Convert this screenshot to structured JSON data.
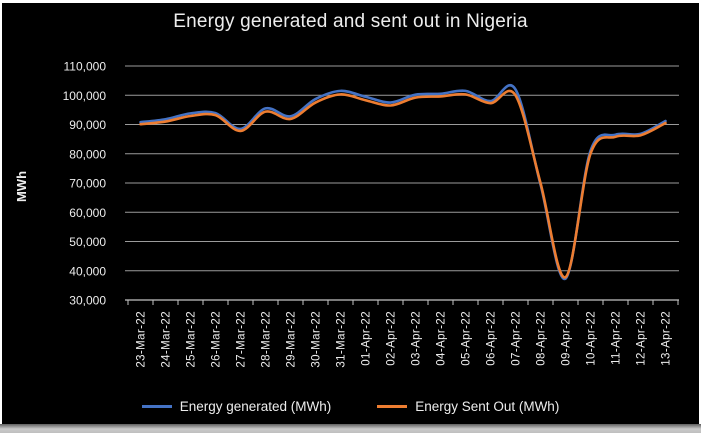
{
  "chart_data": {
    "type": "line",
    "title": "Energy generated and sent out in Nigeria",
    "xlabel": "",
    "ylabel": "MWh",
    "categories": [
      "23-Mar-22",
      "24-Mar-22",
      "25-Mar-22",
      "26-Mar-22",
      "27-Mar-22",
      "28-Mar-22",
      "29-Mar-22",
      "30-Mar-22",
      "31-Mar-22",
      "01-Apr-22",
      "02-Apr-22",
      "03-Apr-22",
      "04-Apr-22",
      "05-Apr-22",
      "06-Apr-22",
      "07-Apr-22",
      "08-Apr-22",
      "09-Apr-22",
      "10-Apr-22",
      "11-Apr-22",
      "12-Apr-22",
      "13-Apr-22"
    ],
    "series": [
      {
        "name": "Energy generated (MWh)",
        "color": "#4472C4",
        "values": [
          90800,
          91800,
          93800,
          93900,
          88500,
          95500,
          92800,
          98700,
          101500,
          99500,
          97500,
          100200,
          100500,
          101500,
          98000,
          102000,
          69500,
          37300,
          81000,
          86500,
          86800,
          91200
        ]
      },
      {
        "name": "Energy Sent Out (MWh)",
        "color": "#ED7D31",
        "values": [
          90100,
          91000,
          92900,
          93200,
          87800,
          94400,
          91900,
          97500,
          100300,
          98300,
          96500,
          99200,
          99600,
          100300,
          97300,
          100000,
          70000,
          37800,
          80000,
          85800,
          86300,
          90500
        ]
      }
    ],
    "ylim": [
      30000,
      110000
    ],
    "ytick_step": 10000,
    "grid": true,
    "smooth_lines": true,
    "legend_position": "bottom"
  },
  "colors": {
    "chart_background": "#000000",
    "text": "#ededed",
    "gridline": "#9b9b9b",
    "axis_line": "#c3c3c3"
  }
}
